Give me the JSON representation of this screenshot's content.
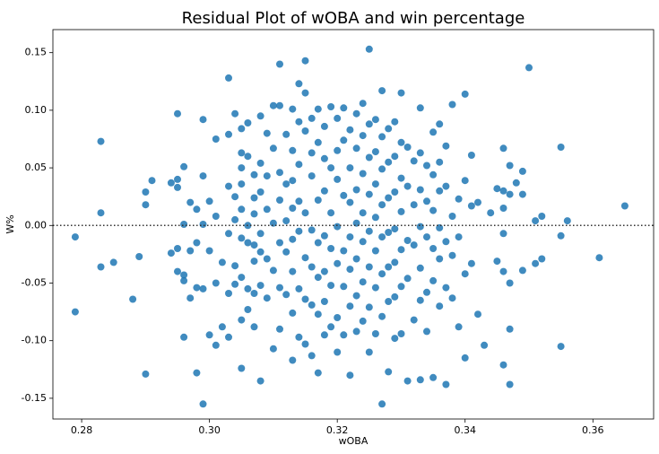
{
  "chart_data": {
    "type": "scatter",
    "title": "Residual Plot of wOBA and win percentage",
    "xlabel": "wOBA",
    "ylabel": "W%",
    "xlim": [
      0.2755,
      0.3695
    ],
    "ylim": [
      -0.168,
      0.17
    ],
    "xticks": [
      "0.28",
      "0.30",
      "0.32",
      "0.34",
      "0.36"
    ],
    "yticks": [
      "0.15",
      "0.10",
      "0.05",
      "0.00",
      "-0.05",
      "-0.10",
      "-0.15"
    ],
    "reference_line_y": 0.0,
    "grid": false,
    "point_color": "#1f77b4",
    "points": [
      [
        0.279,
        -0.01
      ],
      [
        0.279,
        -0.075
      ],
      [
        0.283,
        0.073
      ],
      [
        0.283,
        0.011
      ],
      [
        0.283,
        -0.036
      ],
      [
        0.285,
        -0.032
      ],
      [
        0.288,
        -0.064
      ],
      [
        0.289,
        -0.027
      ],
      [
        0.29,
        0.029
      ],
      [
        0.29,
        0.018
      ],
      [
        0.29,
        -0.129
      ],
      [
        0.291,
        0.039
      ],
      [
        0.294,
        0.037
      ],
      [
        0.294,
        -0.024
      ],
      [
        0.295,
        0.097
      ],
      [
        0.295,
        0.04
      ],
      [
        0.295,
        0.033
      ],
      [
        0.295,
        -0.04
      ],
      [
        0.295,
        -0.02
      ],
      [
        0.296,
        0.051
      ],
      [
        0.296,
        0.001
      ],
      [
        0.296,
        -0.043
      ],
      [
        0.296,
        -0.097
      ],
      [
        0.296,
        -0.048
      ],
      [
        0.297,
        0.02
      ],
      [
        0.297,
        -0.022
      ],
      [
        0.297,
        -0.063
      ],
      [
        0.298,
        0.014
      ],
      [
        0.298,
        -0.015
      ],
      [
        0.298,
        -0.054
      ],
      [
        0.298,
        -0.128
      ],
      [
        0.299,
        0.092
      ],
      [
        0.299,
        0.043
      ],
      [
        0.299,
        0.001
      ],
      [
        0.299,
        -0.055
      ],
      [
        0.299,
        -0.155
      ],
      [
        0.3,
        0.021
      ],
      [
        0.3,
        -0.022
      ],
      [
        0.3,
        -0.095
      ],
      [
        0.301,
        0.075
      ],
      [
        0.301,
        0.008
      ],
      [
        0.301,
        -0.05
      ],
      [
        0.301,
        -0.104
      ],
      [
        0.302,
        -0.032
      ],
      [
        0.302,
        -0.088
      ],
      [
        0.303,
        0.079
      ],
      [
        0.303,
        0.128
      ],
      [
        0.303,
        0.034
      ],
      [
        0.303,
        -0.007
      ],
      [
        0.303,
        -0.059
      ],
      [
        0.303,
        -0.097
      ],
      [
        0.304,
        0.097
      ],
      [
        0.304,
        0.025
      ],
      [
        0.304,
        0.005
      ],
      [
        0.304,
        -0.035
      ],
      [
        0.304,
        -0.051
      ],
      [
        0.305,
        0.084
      ],
      [
        0.305,
        0.036
      ],
      [
        0.305,
        0.05
      ],
      [
        0.305,
        0.063
      ],
      [
        0.305,
        0.014
      ],
      [
        0.305,
        -0.011
      ],
      [
        0.305,
        -0.045
      ],
      [
        0.305,
        -0.082
      ],
      [
        0.305,
        -0.124
      ],
      [
        0.306,
        0.089
      ],
      [
        0.306,
        0.06
      ],
      [
        0.306,
        0.0
      ],
      [
        0.306,
        -0.015
      ],
      [
        0.306,
        -0.055
      ],
      [
        0.306,
        -0.073
      ],
      [
        0.307,
        0.044
      ],
      [
        0.307,
        0.024
      ],
      [
        0.307,
        0.01
      ],
      [
        0.307,
        -0.017
      ],
      [
        0.307,
        -0.031
      ],
      [
        0.307,
        -0.059
      ],
      [
        0.307,
        -0.088
      ],
      [
        0.308,
        0.095
      ],
      [
        0.308,
        0.054
      ],
      [
        0.308,
        0.029
      ],
      [
        0.308,
        -0.007
      ],
      [
        0.308,
        -0.023
      ],
      [
        0.308,
        -0.052
      ],
      [
        0.308,
        -0.135
      ],
      [
        0.309,
        0.08
      ],
      [
        0.309,
        0.043
      ],
      [
        0.309,
        0.014
      ],
      [
        0.309,
        -0.029
      ],
      [
        0.309,
        -0.063
      ],
      [
        0.31,
        0.104
      ],
      [
        0.31,
        0.067
      ],
      [
        0.31,
        0.002
      ],
      [
        0.31,
        -0.039
      ],
      [
        0.31,
        -0.107
      ],
      [
        0.311,
        0.14
      ],
      [
        0.311,
        0.104
      ],
      [
        0.311,
        0.046
      ],
      [
        0.311,
        0.022
      ],
      [
        0.311,
        -0.015
      ],
      [
        0.311,
        -0.054
      ],
      [
        0.311,
        -0.09
      ],
      [
        0.312,
        0.079
      ],
      [
        0.312,
        0.036
      ],
      [
        0.312,
        0.004
      ],
      [
        0.312,
        -0.023
      ],
      [
        0.312,
        -0.06
      ],
      [
        0.313,
        0.101
      ],
      [
        0.313,
        0.065
      ],
      [
        0.313,
        0.039
      ],
      [
        0.313,
        0.015
      ],
      [
        0.313,
        -0.012
      ],
      [
        0.313,
        -0.04
      ],
      [
        0.313,
        -0.076
      ],
      [
        0.313,
        -0.117
      ],
      [
        0.314,
        0.123
      ],
      [
        0.314,
        0.09
      ],
      [
        0.314,
        0.053
      ],
      [
        0.314,
        0.021
      ],
      [
        0.314,
        -0.005
      ],
      [
        0.314,
        -0.055
      ],
      [
        0.314,
        -0.097
      ],
      [
        0.315,
        0.143
      ],
      [
        0.315,
        0.115
      ],
      [
        0.315,
        0.082
      ],
      [
        0.315,
        0.011
      ],
      [
        0.315,
        -0.028
      ],
      [
        0.315,
        -0.064
      ],
      [
        0.315,
        -0.103
      ],
      [
        0.316,
        0.093
      ],
      [
        0.316,
        0.063
      ],
      [
        0.316,
        0.043
      ],
      [
        0.316,
        -0.004
      ],
      [
        0.316,
        -0.036
      ],
      [
        0.316,
        -0.069
      ],
      [
        0.316,
        -0.113
      ],
      [
        0.317,
        0.101
      ],
      [
        0.317,
        0.072
      ],
      [
        0.317,
        0.022
      ],
      [
        0.317,
        -0.015
      ],
      [
        0.317,
        -0.045
      ],
      [
        0.317,
        -0.077
      ],
      [
        0.317,
        -0.128
      ],
      [
        0.318,
        0.086
      ],
      [
        0.318,
        0.058
      ],
      [
        0.318,
        0.03
      ],
      [
        0.318,
        -0.009
      ],
      [
        0.318,
        -0.04
      ],
      [
        0.318,
        -0.066
      ],
      [
        0.318,
        -0.095
      ],
      [
        0.319,
        0.103
      ],
      [
        0.319,
        0.05
      ],
      [
        0.319,
        0.011
      ],
      [
        0.319,
        -0.02
      ],
      [
        0.319,
        -0.052
      ],
      [
        0.319,
        -0.088
      ],
      [
        0.32,
        0.093
      ],
      [
        0.32,
        0.065
      ],
      [
        0.32,
        0.04
      ],
      [
        0.32,
        -0.001
      ],
      [
        0.32,
        -0.033
      ],
      [
        0.32,
        -0.08
      ],
      [
        0.32,
        -0.11
      ],
      [
        0.321,
        0.102
      ],
      [
        0.321,
        0.074
      ],
      [
        0.321,
        0.026
      ],
      [
        0.321,
        -0.022
      ],
      [
        0.321,
        -0.053
      ],
      [
        0.321,
        -0.095
      ],
      [
        0.322,
        0.083
      ],
      [
        0.322,
        0.05
      ],
      [
        0.322,
        0.02
      ],
      [
        0.322,
        -0.01
      ],
      [
        0.322,
        -0.038
      ],
      [
        0.322,
        -0.07
      ],
      [
        0.322,
        -0.13
      ],
      [
        0.323,
        0.097
      ],
      [
        0.323,
        0.067
      ],
      [
        0.323,
        0.031
      ],
      [
        0.323,
        0.002
      ],
      [
        0.323,
        -0.029
      ],
      [
        0.323,
        -0.061
      ],
      [
        0.323,
        -0.092
      ],
      [
        0.324,
        0.106
      ],
      [
        0.324,
        0.078
      ],
      [
        0.324,
        0.045
      ],
      [
        0.324,
        0.011
      ],
      [
        0.324,
        -0.014
      ],
      [
        0.324,
        -0.049
      ],
      [
        0.324,
        -0.083
      ],
      [
        0.325,
        0.153
      ],
      [
        0.325,
        0.088
      ],
      [
        0.325,
        0.059
      ],
      [
        0.325,
        0.027
      ],
      [
        0.325,
        -0.005
      ],
      [
        0.325,
        -0.036
      ],
      [
        0.325,
        -0.071
      ],
      [
        0.325,
        -0.11
      ],
      [
        0.326,
        0.092
      ],
      [
        0.326,
        0.064
      ],
      [
        0.326,
        0.036
      ],
      [
        0.326,
        0.007
      ],
      [
        0.326,
        -0.022
      ],
      [
        0.326,
        -0.054
      ],
      [
        0.326,
        -0.094
      ],
      [
        0.327,
        0.117
      ],
      [
        0.327,
        0.077
      ],
      [
        0.327,
        0.049
      ],
      [
        0.327,
        0.018
      ],
      [
        0.327,
        -0.01
      ],
      [
        0.327,
        -0.042
      ],
      [
        0.327,
        -0.079
      ],
      [
        0.327,
        -0.155
      ],
      [
        0.328,
        0.084
      ],
      [
        0.328,
        0.055
      ],
      [
        0.328,
        0.024
      ],
      [
        0.328,
        -0.006
      ],
      [
        0.328,
        -0.036
      ],
      [
        0.328,
        -0.066
      ],
      [
        0.328,
        -0.127
      ],
      [
        0.329,
        0.09
      ],
      [
        0.329,
        0.06
      ],
      [
        0.329,
        0.029
      ],
      [
        0.329,
        -0.003
      ],
      [
        0.329,
        -0.032
      ],
      [
        0.329,
        -0.062
      ],
      [
        0.329,
        -0.098
      ],
      [
        0.33,
        0.115
      ],
      [
        0.33,
        0.072
      ],
      [
        0.33,
        0.041
      ],
      [
        0.33,
        0.012
      ],
      [
        0.33,
        -0.021
      ],
      [
        0.33,
        -0.053
      ],
      [
        0.33,
        -0.094
      ],
      [
        0.331,
        0.068
      ],
      [
        0.331,
        0.034
      ],
      [
        0.331,
        -0.013
      ],
      [
        0.331,
        -0.046
      ],
      [
        0.331,
        -0.135
      ],
      [
        0.332,
        0.056
      ],
      [
        0.332,
        0.018
      ],
      [
        0.332,
        -0.017
      ],
      [
        0.332,
        -0.082
      ],
      [
        0.333,
        0.102
      ],
      [
        0.333,
        0.063
      ],
      [
        0.333,
        0.031
      ],
      [
        0.333,
        -0.001
      ],
      [
        0.333,
        -0.037
      ],
      [
        0.333,
        -0.065
      ],
      [
        0.333,
        -0.134
      ],
      [
        0.334,
        0.052
      ],
      [
        0.334,
        0.021
      ],
      [
        0.334,
        -0.01
      ],
      [
        0.334,
        -0.058
      ],
      [
        0.334,
        -0.092
      ],
      [
        0.335,
        0.081
      ],
      [
        0.335,
        0.044
      ],
      [
        0.335,
        0.013
      ],
      [
        0.335,
        -0.02
      ],
      [
        0.335,
        -0.048
      ],
      [
        0.335,
        -0.132
      ],
      [
        0.336,
        0.088
      ],
      [
        0.336,
        0.055
      ],
      [
        0.336,
        0.03
      ],
      [
        0.336,
        -0.002
      ],
      [
        0.336,
        -0.029
      ],
      [
        0.336,
        -0.07
      ],
      [
        0.337,
        0.069
      ],
      [
        0.337,
        0.034
      ],
      [
        0.337,
        -0.014
      ],
      [
        0.337,
        -0.054
      ],
      [
        0.337,
        -0.138
      ],
      [
        0.338,
        0.105
      ],
      [
        0.338,
        0.008
      ],
      [
        0.338,
        -0.026
      ],
      [
        0.338,
        -0.063
      ],
      [
        0.339,
        0.023
      ],
      [
        0.339,
        -0.01
      ],
      [
        0.339,
        -0.088
      ],
      [
        0.34,
        0.114
      ],
      [
        0.34,
        0.039
      ],
      [
        0.34,
        -0.042
      ],
      [
        0.34,
        -0.115
      ],
      [
        0.341,
        0.061
      ],
      [
        0.341,
        0.017
      ],
      [
        0.341,
        -0.033
      ],
      [
        0.342,
        0.02
      ],
      [
        0.342,
        -0.077
      ],
      [
        0.343,
        -0.104
      ],
      [
        0.344,
        0.011
      ],
      [
        0.345,
        0.032
      ],
      [
        0.345,
        -0.031
      ],
      [
        0.346,
        0.067
      ],
      [
        0.346,
        0.03
      ],
      [
        0.346,
        0.015
      ],
      [
        0.346,
        -0.007
      ],
      [
        0.346,
        -0.04
      ],
      [
        0.346,
        -0.121
      ],
      [
        0.347,
        0.052
      ],
      [
        0.347,
        0.027
      ],
      [
        0.347,
        -0.05
      ],
      [
        0.347,
        -0.09
      ],
      [
        0.347,
        -0.138
      ],
      [
        0.348,
        0.037
      ],
      [
        0.349,
        0.047
      ],
      [
        0.349,
        0.027
      ],
      [
        0.349,
        -0.039
      ],
      [
        0.35,
        0.137
      ],
      [
        0.351,
        0.004
      ],
      [
        0.351,
        -0.033
      ],
      [
        0.352,
        0.008
      ],
      [
        0.352,
        -0.029
      ],
      [
        0.355,
        0.068
      ],
      [
        0.355,
        -0.009
      ],
      [
        0.355,
        -0.105
      ],
      [
        0.356,
        0.004
      ],
      [
        0.361,
        -0.028
      ],
      [
        0.365,
        0.017
      ]
    ]
  }
}
